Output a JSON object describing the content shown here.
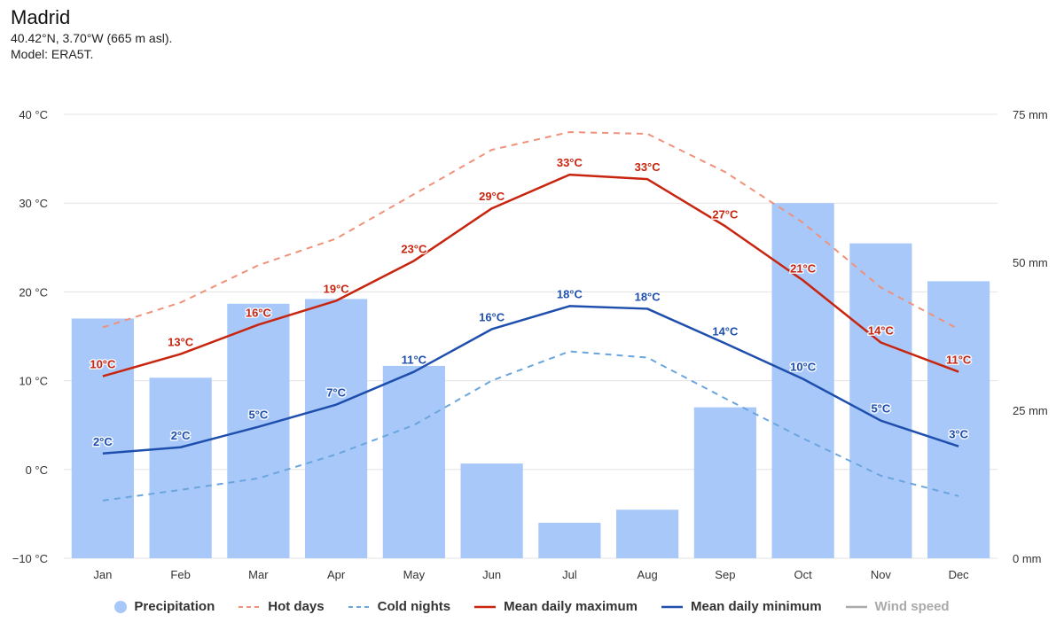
{
  "header": {
    "title": "Madrid",
    "coords": "40.42°N, 3.70°W (665 m asl).",
    "model": "Model: ERA5T."
  },
  "legend": [
    {
      "key": "precipitation",
      "label": "Precipitation"
    },
    {
      "key": "hot_days",
      "label": "Hot days"
    },
    {
      "key": "cold_nights",
      "label": "Cold nights"
    },
    {
      "key": "mean_max",
      "label": "Mean daily maximum"
    },
    {
      "key": "mean_min",
      "label": "Mean daily minimum"
    },
    {
      "key": "wind",
      "label": "Wind speed"
    }
  ],
  "colors": {
    "precipitation": "#a8c8fa",
    "hot_days": "#f0917a",
    "cold_nights": "#6aa6dd",
    "mean_max": "#c8250f",
    "mean_min": "#1f4fad",
    "wind": "#aaaaaa",
    "grid": "#e3e3e3",
    "axis_text": "#333333"
  },
  "chart_data": {
    "type": "bar",
    "categories": [
      "Jan",
      "Feb",
      "Mar",
      "Apr",
      "May",
      "Jun",
      "Jul",
      "Aug",
      "Sep",
      "Oct",
      "Nov",
      "Dec"
    ],
    "y_left": {
      "unit": "°C",
      "ylim": [
        -10,
        40
      ],
      "ticks": [
        -10,
        0,
        10,
        20,
        30,
        40
      ],
      "tick_labels": [
        "−10 °C",
        "0 °C",
        "10 °C",
        "20 °C",
        "30 °C",
        "40 °C"
      ]
    },
    "y_right": {
      "unit": "mm",
      "ylim": [
        0,
        75
      ],
      "ticks": [
        0,
        25,
        50,
        75
      ],
      "tick_labels": [
        "0 mm",
        "25 mm",
        "50 mm",
        "75 mm"
      ]
    },
    "grid": true,
    "legend_position": "bottom",
    "series": [
      {
        "key": "precipitation",
        "name": "Precipitation",
        "type": "bar",
        "axis": "right",
        "values": [
          40.5,
          30.5,
          43.0,
          43.8,
          32.5,
          16.0,
          6.0,
          8.2,
          25.5,
          60.0,
          53.2,
          46.8
        ]
      },
      {
        "key": "hot_days",
        "name": "Hot days",
        "type": "line",
        "dash": true,
        "axis": "left",
        "values": [
          16.0,
          18.8,
          23.0,
          26.0,
          31.0,
          36.0,
          38.0,
          37.8,
          33.5,
          27.8,
          20.5,
          15.8
        ]
      },
      {
        "key": "cold_nights",
        "name": "Cold nights",
        "type": "line",
        "dash": true,
        "axis": "left",
        "values": [
          -3.5,
          -2.3,
          -1.0,
          1.7,
          5.0,
          10.0,
          13.3,
          12.6,
          8.0,
          3.5,
          -0.7,
          -3.0
        ]
      },
      {
        "key": "mean_max",
        "name": "Mean daily maximum",
        "type": "line",
        "axis": "left",
        "values": [
          10.5,
          13.0,
          16.3,
          19.0,
          23.5,
          29.4,
          33.2,
          32.7,
          27.4,
          21.3,
          14.3,
          11.0
        ],
        "labels": [
          "10°C",
          "13°C",
          "16°C",
          "19°C",
          "23°C",
          "29°C",
          "33°C",
          "33°C",
          "27°C",
          "21°C",
          "14°C",
          "11°C"
        ]
      },
      {
        "key": "mean_min",
        "name": "Mean daily minimum",
        "type": "line",
        "axis": "left",
        "values": [
          1.8,
          2.5,
          4.8,
          7.3,
          11.0,
          15.8,
          18.4,
          18.1,
          14.2,
          10.2,
          5.5,
          2.6
        ],
        "labels": [
          "2°C",
          "2°C",
          "5°C",
          "7°C",
          "11°C",
          "16°C",
          "18°C",
          "18°C",
          "14°C",
          "10°C",
          "5°C",
          "3°C"
        ]
      }
    ]
  }
}
